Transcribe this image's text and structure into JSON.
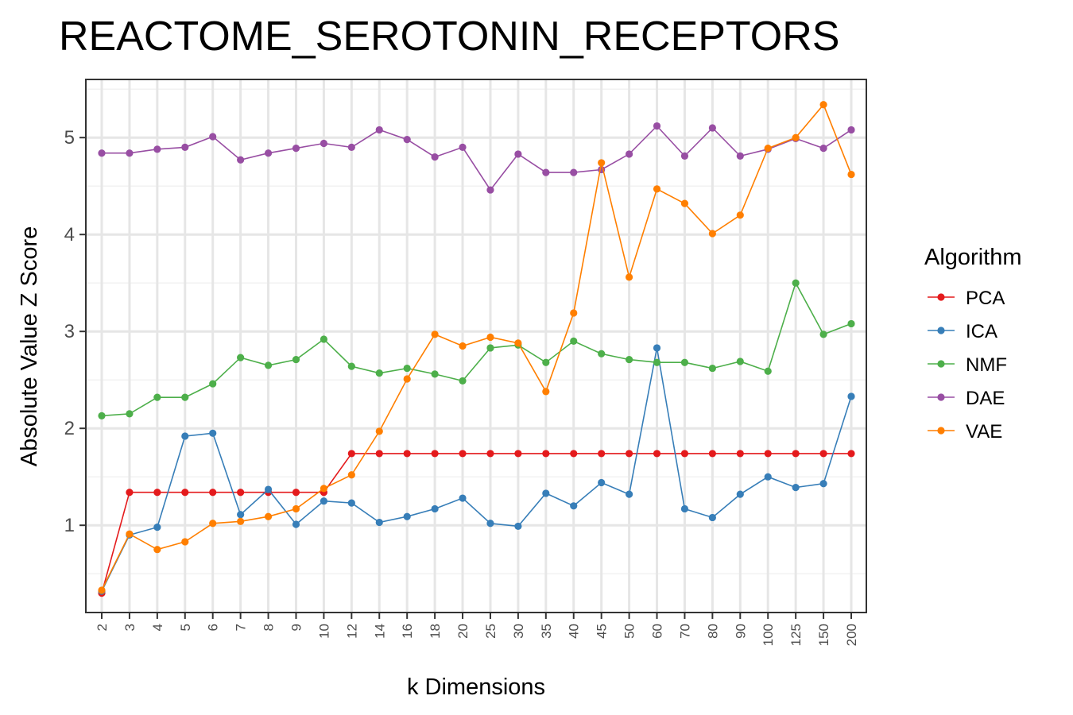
{
  "chart_data": {
    "type": "line",
    "title": "REACTOME_SEROTONIN_RECEPTORS",
    "xlabel": "k Dimensions",
    "ylabel": "Absolute Value Z Score",
    "categories": [
      "2",
      "3",
      "4",
      "5",
      "6",
      "7",
      "8",
      "9",
      "10",
      "12",
      "14",
      "16",
      "18",
      "20",
      "25",
      "30",
      "35",
      "40",
      "45",
      "50",
      "60",
      "70",
      "80",
      "90",
      "100",
      "125",
      "150",
      "200"
    ],
    "y_ticks": [
      1,
      2,
      3,
      4,
      5
    ],
    "ylim": [
      0.1,
      5.6
    ],
    "grid": true,
    "legend": {
      "title": "Algorithm",
      "position": "right"
    },
    "series": [
      {
        "name": "PCA",
        "color": "#E41A1C",
        "values": [
          0.3,
          1.34,
          1.34,
          1.34,
          1.34,
          1.34,
          1.34,
          1.34,
          1.34,
          1.74,
          1.74,
          1.74,
          1.74,
          1.74,
          1.74,
          1.74,
          1.74,
          1.74,
          1.74,
          1.74,
          1.74,
          1.74,
          1.74,
          1.74,
          1.74,
          1.74,
          1.74,
          1.74
        ]
      },
      {
        "name": "ICA",
        "color": "#377EB8",
        "values": [
          0.32,
          0.9,
          0.98,
          1.92,
          1.95,
          1.11,
          1.37,
          1.01,
          1.25,
          1.23,
          1.03,
          1.09,
          1.17,
          1.28,
          1.02,
          0.99,
          1.33,
          1.2,
          1.44,
          1.32,
          2.83,
          1.17,
          1.08,
          1.32,
          1.5,
          1.39,
          1.43,
          2.33
        ]
      },
      {
        "name": "NMF",
        "color": "#4DAF4A",
        "values": [
          2.13,
          2.15,
          2.32,
          2.32,
          2.46,
          2.73,
          2.65,
          2.71,
          2.92,
          2.64,
          2.57,
          2.62,
          2.56,
          2.49,
          2.83,
          2.86,
          2.68,
          2.9,
          2.77,
          2.71,
          2.68,
          2.68,
          2.62,
          2.69,
          2.59,
          3.5,
          2.97,
          3.08
        ]
      },
      {
        "name": "DAE",
        "color": "#984EA3",
        "values": [
          4.84,
          4.84,
          4.88,
          4.9,
          5.01,
          4.77,
          4.84,
          4.89,
          4.94,
          4.9,
          5.08,
          4.98,
          4.8,
          4.9,
          4.46,
          4.83,
          4.64,
          4.64,
          4.67,
          4.83,
          5.12,
          4.81,
          5.1,
          4.81,
          4.88,
          4.99,
          4.89,
          5.08
        ]
      },
      {
        "name": "VAE",
        "color": "#FF7F00",
        "values": [
          0.33,
          0.91,
          0.75,
          0.83,
          1.02,
          1.04,
          1.09,
          1.17,
          1.38,
          1.52,
          1.97,
          2.51,
          2.97,
          2.85,
          2.94,
          2.88,
          2.38,
          3.19,
          4.74,
          3.56,
          4.47,
          4.32,
          4.01,
          4.2,
          4.89,
          5.0,
          5.34,
          4.62
        ]
      }
    ]
  }
}
